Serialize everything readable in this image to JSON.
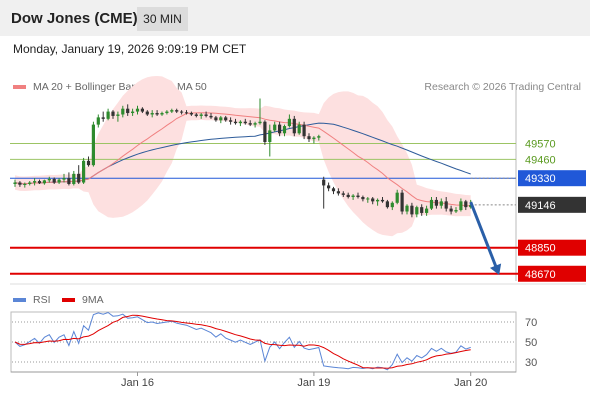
{
  "header": {
    "title": "Dow Jones (CME)",
    "interval": "30 MIN",
    "datetime": "Monday, January 19, 2026 9:09:19 PM CET"
  },
  "legend": {
    "items": [
      {
        "label": "MA 20 + Bollinger Bands",
        "color": "#f08080"
      },
      {
        "label": "MA 50",
        "color": "#2e5c9a"
      }
    ],
    "credit": "Research © 2026 Trading Central"
  },
  "colors": {
    "candle_up": "#2e8b2e",
    "candle_down": "#333333",
    "bollinger_fill": "#fde0e0",
    "ma20": "#f08080",
    "ma50": "#2e5c9a",
    "resistance": "#9cc464",
    "pivot": "#2058d8",
    "support": "#e00000",
    "arrow": "#2a5fa8",
    "rsi": "#5b86d6",
    "rsi_ma": "#e00000"
  },
  "chart_data": [
    {
      "type": "candlestick",
      "title": "Dow Jones (CME)",
      "ylim": [
        48620,
        49870
      ],
      "levels": [
        {
          "value": 49570,
          "label": "49570",
          "kind": "resistance"
        },
        {
          "value": 49460,
          "label": "49460",
          "kind": "resistance"
        },
        {
          "value": 49330,
          "label": "49330",
          "kind": "pivot"
        },
        {
          "value": 49146,
          "label": "49146",
          "kind": "last"
        },
        {
          "value": 48850,
          "label": "48850",
          "kind": "support"
        },
        {
          "value": 48670,
          "label": "48670",
          "kind": "support"
        }
      ],
      "x_ticks": [
        {
          "label": "Jan 16",
          "index": 25
        },
        {
          "label": "Jan 19",
          "index": 61
        },
        {
          "label": "Jan 20",
          "index": 93
        }
      ],
      "projection": {
        "from_index": 93,
        "from_value": 49165,
        "to_index": 100,
        "to_value": 48700
      },
      "ohlc": [
        [
          49290,
          49320,
          49270,
          49300
        ],
        [
          49300,
          49310,
          49270,
          49285
        ],
        [
          49285,
          49300,
          49265,
          49290
        ],
        [
          49290,
          49310,
          49280,
          49300
        ],
        [
          49300,
          49330,
          49280,
          49310
        ],
        [
          49310,
          49320,
          49290,
          49295
        ],
        [
          49295,
          49320,
          49285,
          49315
        ],
        [
          49315,
          49340,
          49300,
          49325
        ],
        [
          49325,
          49335,
          49290,
          49300
        ],
        [
          49300,
          49330,
          49290,
          49320
        ],
        [
          49320,
          49360,
          49300,
          49330
        ],
        [
          49330,
          49370,
          49280,
          49290
        ],
        [
          49290,
          49380,
          49280,
          49360
        ],
        [
          49360,
          49420,
          49290,
          49300
        ],
        [
          49300,
          49470,
          49290,
          49450
        ],
        [
          49450,
          49480,
          49410,
          49420
        ],
        [
          49420,
          49720,
          49410,
          49700
        ],
        [
          49700,
          49770,
          49680,
          49750
        ],
        [
          49750,
          49790,
          49720,
          49740
        ],
        [
          49740,
          49810,
          49730,
          49790
        ],
        [
          49790,
          49800,
          49740,
          49760
        ],
        [
          49760,
          49790,
          49720,
          49770
        ],
        [
          49770,
          49830,
          49750,
          49810
        ],
        [
          49810,
          49840,
          49760,
          49780
        ],
        [
          49780,
          49810,
          49760,
          49790
        ],
        [
          49790,
          49830,
          49770,
          49810
        ],
        [
          49810,
          49820,
          49780,
          49790
        ],
        [
          49790,
          49800,
          49760,
          49770
        ],
        [
          49770,
          49800,
          49750,
          49780
        ],
        [
          49780,
          49800,
          49760,
          49770
        ],
        [
          49770,
          49790,
          49760,
          49780
        ],
        [
          49780,
          49800,
          49770,
          49790
        ],
        [
          49790,
          49810,
          49780,
          49800
        ],
        [
          49800,
          49810,
          49780,
          49790
        ],
        [
          49790,
          49800,
          49770,
          49785
        ],
        [
          49785,
          49800,
          49770,
          49780
        ],
        [
          49780,
          49790,
          49760,
          49770
        ],
        [
          49770,
          49780,
          49750,
          49760
        ],
        [
          49760,
          49780,
          49740,
          49770
        ],
        [
          49770,
          49790,
          49750,
          49760
        ],
        [
          49760,
          49780,
          49740,
          49750
        ],
        [
          49750,
          49760,
          49720,
          49730
        ],
        [
          49730,
          49760,
          49710,
          49750
        ],
        [
          49750,
          49760,
          49720,
          49730
        ],
        [
          49730,
          49750,
          49700,
          49720
        ],
        [
          49720,
          49740,
          49700,
          49710
        ],
        [
          49710,
          49730,
          49690,
          49720
        ],
        [
          49720,
          49740,
          49700,
          49710
        ],
        [
          49710,
          49730,
          49690,
          49700
        ],
        [
          49700,
          49720,
          49680,
          49710
        ],
        [
          49710,
          49880,
          49700,
          49720
        ],
        [
          49720,
          49730,
          49560,
          49580
        ],
        [
          49580,
          49700,
          49480,
          49660
        ],
        [
          49660,
          49720,
          49650,
          49700
        ],
        [
          49700,
          49720,
          49620,
          49640
        ],
        [
          49640,
          49700,
          49620,
          49690
        ],
        [
          49690,
          49770,
          49680,
          49740
        ],
        [
          49740,
          49760,
          49620,
          49640
        ],
        [
          49640,
          49720,
          49630,
          49700
        ],
        [
          49700,
          49720,
          49600,
          49620
        ],
        [
          49620,
          49640,
          49580,
          49600
        ],
        [
          49600,
          49620,
          49570,
          49610
        ],
        [
          49610,
          49630,
          49590,
          49620
        ],
        [
          49320,
          49340,
          49120,
          49280
        ],
        [
          49280,
          49300,
          49240,
          49260
        ],
        [
          49260,
          49270,
          49220,
          49240
        ],
        [
          49240,
          49260,
          49210,
          49225
        ],
        [
          49225,
          49240,
          49200,
          49215
        ],
        [
          49215,
          49230,
          49190,
          49200
        ],
        [
          49200,
          49220,
          49180,
          49210
        ],
        [
          49210,
          49230,
          49190,
          49200
        ],
        [
          49200,
          49210,
          49170,
          49185
        ],
        [
          49185,
          49200,
          49160,
          49190
        ],
        [
          49190,
          49200,
          49150,
          49170
        ],
        [
          49170,
          49190,
          49140,
          49180
        ],
        [
          49180,
          49200,
          49160,
          49170
        ],
        [
          49170,
          49180,
          49120,
          49130
        ],
        [
          49130,
          49170,
          49110,
          49160
        ],
        [
          49160,
          49250,
          49150,
          49230
        ],
        [
          49230,
          49250,
          49080,
          49100
        ],
        [
          49100,
          49150,
          49080,
          49140
        ],
        [
          49140,
          49160,
          49060,
          49080
        ],
        [
          49080,
          49140,
          49060,
          49130
        ],
        [
          49130,
          49150,
          49070,
          49090
        ],
        [
          49090,
          49140,
          49070,
          49120
        ],
        [
          49120,
          49200,
          49110,
          49180
        ],
        [
          49180,
          49200,
          49120,
          49140
        ],
        [
          49140,
          49190,
          49120,
          49170
        ],
        [
          49170,
          49200,
          49100,
          49120
        ],
        [
          49120,
          49140,
          49080,
          49100
        ],
        [
          49100,
          49130,
          49090,
          49110
        ],
        [
          49110,
          49190,
          49100,
          49170
        ],
        [
          49170,
          49180,
          49110,
          49130
        ],
        [
          49130,
          49180,
          49120,
          49146
        ]
      ]
    },
    {
      "type": "line",
      "ylim": [
        20,
        82
      ],
      "y_ticks": [
        {
          "value": 70,
          "label": "70"
        },
        {
          "value": 50,
          "label": "50"
        },
        {
          "value": 30,
          "label": "30"
        }
      ],
      "series": [
        {
          "name": "RSI",
          "color": "#5b86d6"
        },
        {
          "name": "9MA",
          "color": "#e00000"
        }
      ]
    }
  ]
}
